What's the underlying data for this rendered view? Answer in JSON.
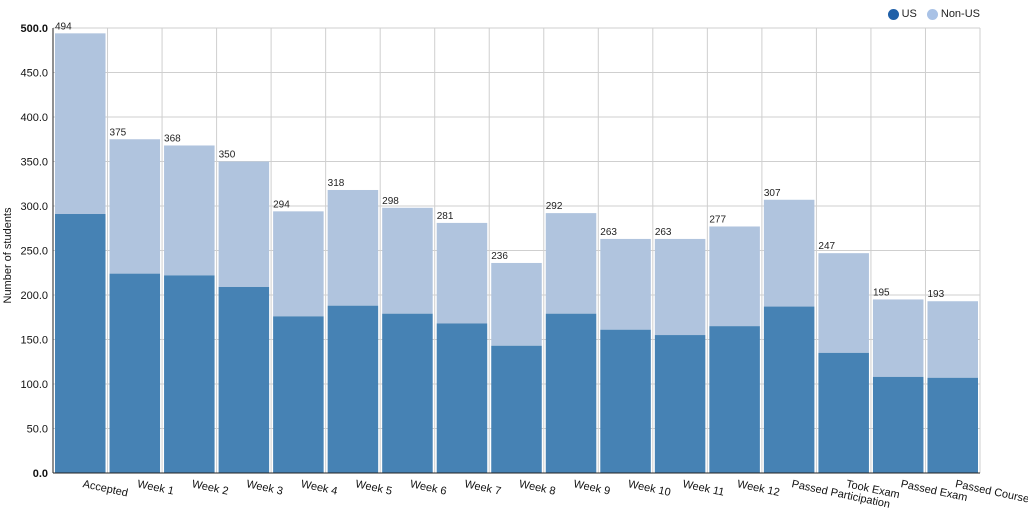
{
  "chart_data": {
    "type": "bar",
    "stacked": true,
    "ylabel": "Number of students",
    "ylim": [
      0,
      500
    ],
    "yticks": [
      "0.0",
      "50.0",
      "100.0",
      "150.0",
      "200.0",
      "250.0",
      "300.0",
      "350.0",
      "400.0",
      "450.0",
      "500.0"
    ],
    "grid": true,
    "legend_position": "top-right",
    "categories": [
      "Accepted",
      "Week 1",
      "Week 2",
      "Week 3",
      "Week 4",
      "Week 5",
      "Week 6",
      "Week 7",
      "Week 8",
      "Week 9",
      "Week 10",
      "Week 11",
      "Week 12",
      "Passed Participation",
      "Took Exam",
      "Passed Exam",
      "Passed Course"
    ],
    "totals": [
      494,
      375,
      368,
      350,
      294,
      318,
      298,
      281,
      236,
      292,
      263,
      263,
      277,
      307,
      247,
      195,
      193
    ],
    "series": [
      {
        "name": "US",
        "color": "#4682b4",
        "values": [
          291,
          224,
          222,
          209,
          176,
          188,
          179,
          168,
          143,
          179,
          161,
          155,
          165,
          187,
          135,
          108,
          107
        ]
      },
      {
        "name": "Non-US",
        "color": "#b0c4de",
        "values": [
          203,
          151,
          146,
          141,
          118,
          130,
          119,
          113,
          93,
          113,
          102,
          108,
          112,
          120,
          112,
          87,
          86
        ]
      }
    ]
  },
  "legend": {
    "items": [
      {
        "label": "US",
        "color": "#2060a8"
      },
      {
        "label": "Non-US",
        "color": "#a9c2e6"
      }
    ]
  }
}
